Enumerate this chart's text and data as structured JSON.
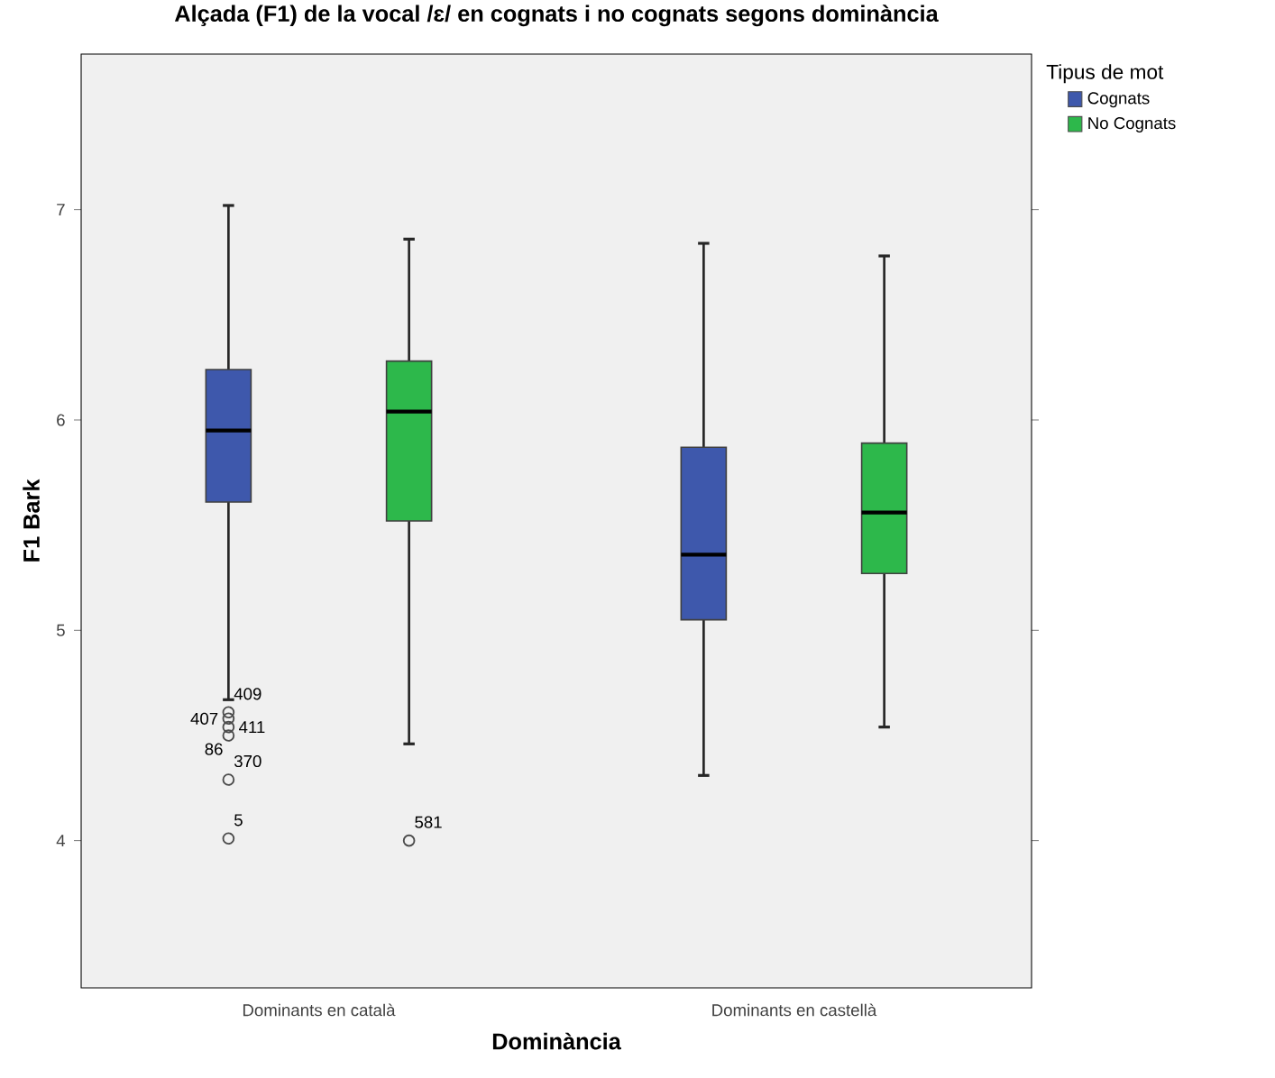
{
  "chart_data": {
    "type": "box",
    "title": "Alçada (F1) de la vocal /ɛ/ en cognats i no cognats segons dominància",
    "xlabel": "Dominància",
    "ylabel": "F1 Bark",
    "legend_title": "Tipus de mot",
    "categories": [
      "Dominants en català",
      "Dominants en castellà"
    ],
    "series": [
      {
        "name": "Cognats",
        "color": "#3e58ac",
        "boxes": [
          {
            "low": 4.67,
            "q1": 5.61,
            "median": 5.95,
            "q3": 6.24,
            "high": 7.02,
            "outliers": [
              4.61,
              4.58,
              4.54,
              4.5,
              4.29,
              4.01
            ]
          },
          {
            "low": 4.31,
            "q1": 5.05,
            "median": 5.36,
            "q3": 5.87,
            "high": 6.84
          }
        ]
      },
      {
        "name": "No Cognats",
        "color": "#2db84b",
        "boxes": [
          {
            "low": 4.46,
            "q1": 5.52,
            "median": 6.04,
            "q3": 6.28,
            "high": 6.86,
            "outliers": [
              4.0
            ]
          },
          {
            "low": 4.54,
            "q1": 5.27,
            "median": 5.56,
            "q3": 5.89,
            "high": 6.78
          }
        ]
      }
    ],
    "ylim": [
      3.3,
      7.74
    ],
    "yticks": [
      4,
      5,
      6,
      7
    ],
    "legend": "top right",
    "annotations": [
      "409",
      "407",
      "411",
      "86",
      "370",
      "5",
      "581"
    ]
  }
}
